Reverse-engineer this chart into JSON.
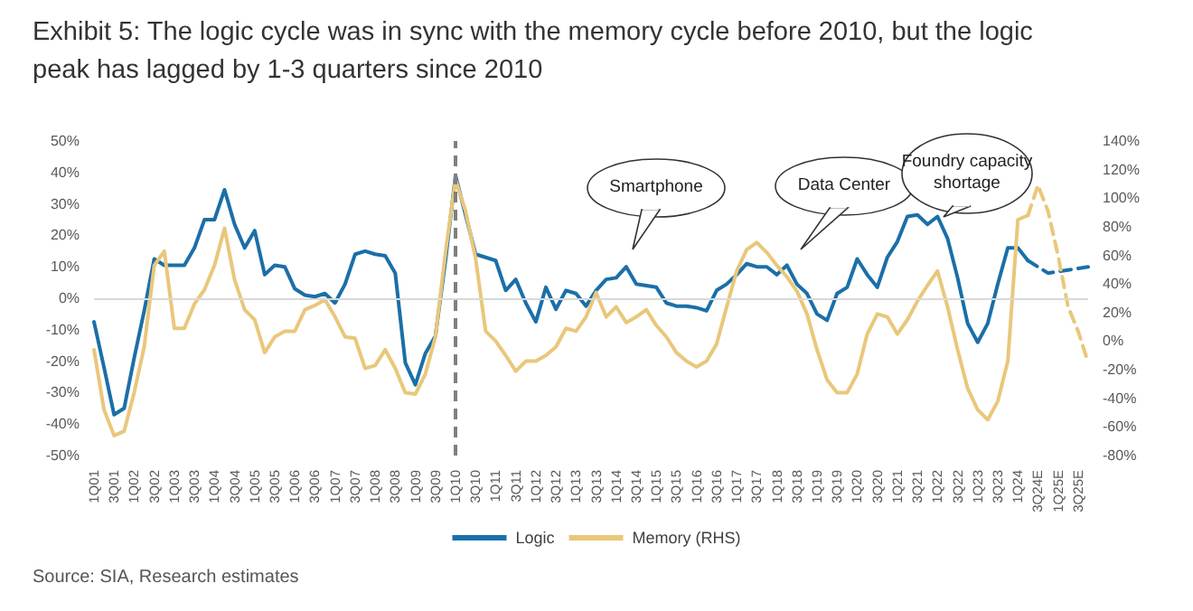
{
  "chart_data": {
    "type": "line",
    "title": "Exhibit 5:    The logic cycle was in sync with the memory cycle before 2010, but the logic peak has lagged by 1-3 quarters since 2010",
    "categories": [
      "1Q01",
      null,
      "3Q01",
      null,
      "1Q02",
      null,
      "3Q02",
      null,
      "1Q03",
      null,
      "3Q03",
      null,
      "1Q04",
      null,
      "3Q04",
      null,
      "1Q05",
      null,
      "3Q05",
      null,
      "1Q06",
      null,
      "3Q06",
      null,
      "1Q07",
      null,
      "3Q07",
      null,
      "1Q08",
      null,
      "3Q08",
      null,
      "1Q09",
      null,
      "3Q09",
      null,
      "1Q10",
      null,
      "3Q10",
      null,
      "1Q11",
      null,
      "3Q11",
      null,
      "1Q12",
      null,
      "3Q12",
      null,
      "1Q13",
      null,
      "3Q13",
      null,
      "1Q14",
      null,
      "3Q14",
      null,
      "1Q15",
      null,
      "3Q15",
      null,
      "1Q16",
      null,
      "3Q16",
      null,
      "1Q17",
      null,
      "3Q17",
      null,
      "1Q18",
      null,
      "3Q18",
      null,
      "1Q19",
      null,
      "3Q19",
      null,
      "1Q20",
      null,
      "3Q20",
      null,
      "1Q21",
      null,
      "3Q21",
      null,
      "1Q22",
      null,
      "3Q22",
      null,
      "1Q23",
      null,
      "3Q23",
      null,
      "1Q24",
      null,
      "3Q24E",
      null,
      "1Q25E",
      null,
      "3Q25E",
      null
    ],
    "series": [
      {
        "name": "Logic",
        "color": "#1b6fa8",
        "line_style": "solid",
        "values": [
          -7.5,
          -22,
          -37,
          -35,
          -19,
          -4,
          12.5,
          10.5,
          10.5,
          10.5,
          16,
          25,
          25,
          34.5,
          23.5,
          16,
          21.5,
          7.5,
          10.5,
          10,
          3,
          1,
          0.5,
          1.5,
          -1.5,
          4.5,
          14,
          15,
          14,
          13.5,
          8,
          -20.5,
          -27.5,
          -17.5,
          -12,
          12,
          39,
          26.5,
          14,
          13,
          12,
          2.5,
          6,
          -1.5,
          -7.5,
          3.5,
          -3.5,
          2.5,
          1.5,
          -2.5,
          2.5,
          6,
          6.5,
          10,
          4.5,
          4,
          3.5,
          -1.5,
          -2.5,
          -2.5,
          -3,
          -4,
          2.5,
          4.5,
          7.5,
          11,
          10,
          10,
          7.5,
          10.5,
          4.5,
          1.5,
          -5,
          -7,
          1.5,
          3.5,
          12.5,
          7.5,
          3.5,
          13,
          18,
          26,
          26.5,
          23.5,
          26,
          19,
          6.5,
          -8,
          -14,
          -8,
          4.5,
          16,
          16,
          12,
          null,
          null,
          null,
          null,
          null,
          null
        ]
      },
      {
        "color": "#1b6fa8",
        "line_style": "dashed",
        "values": [
          null,
          null,
          null,
          null,
          null,
          null,
          null,
          null,
          null,
          null,
          null,
          null,
          null,
          null,
          null,
          null,
          null,
          null,
          null,
          null,
          null,
          null,
          null,
          null,
          null,
          null,
          null,
          null,
          null,
          null,
          null,
          null,
          null,
          null,
          null,
          null,
          null,
          null,
          null,
          null,
          null,
          null,
          null,
          null,
          null,
          null,
          null,
          null,
          null,
          null,
          null,
          null,
          null,
          null,
          null,
          null,
          null,
          null,
          null,
          null,
          null,
          null,
          null,
          null,
          null,
          null,
          null,
          null,
          null,
          null,
          null,
          null,
          null,
          null,
          null,
          null,
          null,
          null,
          null,
          null,
          null,
          null,
          null,
          null,
          null,
          null,
          null,
          null,
          null,
          null,
          null,
          null,
          null,
          12,
          10,
          8,
          8.5,
          9,
          9.5,
          10
        ]
      },
      {
        "name": "Memory (RHS)",
        "color": "#e9c77b",
        "axis": "y2",
        "line_style": "solid",
        "values": [
          -6,
          -48,
          -66,
          -63,
          -36,
          -4,
          53,
          63,
          9,
          9,
          26,
          36,
          53,
          79,
          43,
          22,
          15,
          -8,
          3,
          7,
          7,
          22,
          25,
          29,
          17,
          3,
          2,
          -19,
          -17,
          -6,
          -19,
          -36,
          -37,
          -23,
          3,
          62,
          113,
          91,
          58,
          7,
          0,
          -10,
          -21,
          -14,
          -14,
          -10,
          -4,
          9,
          7,
          17,
          34,
          17,
          24,
          13,
          17,
          22,
          11,
          3,
          -8,
          -14,
          -18,
          -14,
          -2,
          24,
          49,
          64,
          69,
          62,
          53,
          45,
          35,
          19,
          -6,
          -27,
          -36,
          -36,
          -23,
          5,
          19,
          17,
          5,
          15,
          28,
          39,
          49,
          24,
          -6,
          -33,
          -48,
          -55,
          -42,
          -14,
          85,
          88,
          null,
          null,
          null,
          null,
          null,
          null
        ]
      },
      {
        "color": "#e9c77b",
        "axis": "y2",
        "line_style": "dashed",
        "values": [
          null,
          null,
          null,
          null,
          null,
          null,
          null,
          null,
          null,
          null,
          null,
          null,
          null,
          null,
          null,
          null,
          null,
          null,
          null,
          null,
          null,
          null,
          null,
          null,
          null,
          null,
          null,
          null,
          null,
          null,
          null,
          null,
          null,
          null,
          null,
          null,
          null,
          null,
          null,
          null,
          null,
          null,
          null,
          null,
          null,
          null,
          null,
          null,
          null,
          null,
          null,
          null,
          null,
          null,
          null,
          null,
          null,
          null,
          null,
          null,
          null,
          null,
          null,
          null,
          null,
          null,
          null,
          null,
          null,
          null,
          null,
          null,
          null,
          null,
          null,
          null,
          null,
          null,
          null,
          null,
          null,
          null,
          null,
          null,
          null,
          null,
          null,
          null,
          null,
          null,
          null,
          null,
          null,
          88,
          109,
          91,
          60,
          24,
          7,
          -15
        ]
      }
    ],
    "ylim": [
      -50,
      50
    ],
    "yticks": [
      {
        "value": -50,
        "label": "-50%"
      },
      {
        "value": -40,
        "label": "-40%"
      },
      {
        "value": -30,
        "label": "-30%"
      },
      {
        "value": -20,
        "label": "-20%"
      },
      {
        "value": -10,
        "label": "-10%"
      },
      {
        "value": 0,
        "label": "0%"
      },
      {
        "value": 10,
        "label": "10%"
      },
      {
        "value": 20,
        "label": "20%"
      },
      {
        "value": 30,
        "label": "30%"
      },
      {
        "value": 40,
        "label": "40%"
      },
      {
        "value": 50,
        "label": "50%"
      }
    ],
    "y2lim": [
      -80,
      140
    ],
    "y2ticks": [
      {
        "value": -80,
        "label": "-80%"
      },
      {
        "value": -60,
        "label": "-60%"
      },
      {
        "value": -40,
        "label": "-40%"
      },
      {
        "value": -20,
        "label": "-20%"
      },
      {
        "value": 0,
        "label": "0%"
      },
      {
        "value": 20,
        "label": "20%"
      },
      {
        "value": 40,
        "label": "40%"
      },
      {
        "value": 60,
        "label": "60%"
      },
      {
        "value": 80,
        "label": "80%"
      },
      {
        "value": 100,
        "label": "100%"
      },
      {
        "value": 120,
        "label": "120%"
      },
      {
        "value": 140,
        "label": "140%"
      }
    ],
    "ref_lines": [
      {
        "axis": "x",
        "value": "1Q10",
        "color": "#7f7f7f",
        "line_style": "dashed"
      },
      {
        "axis": "y",
        "value": 0,
        "color": "#d9d9d9",
        "line_style": "solid"
      }
    ],
    "annotations": [
      "Smartphone",
      "Data Center",
      "Foundry capacity shortage",
      "Source: SIA, Research estimates"
    ],
    "grid": false,
    "legend": "bottom",
    "marker": "none"
  }
}
